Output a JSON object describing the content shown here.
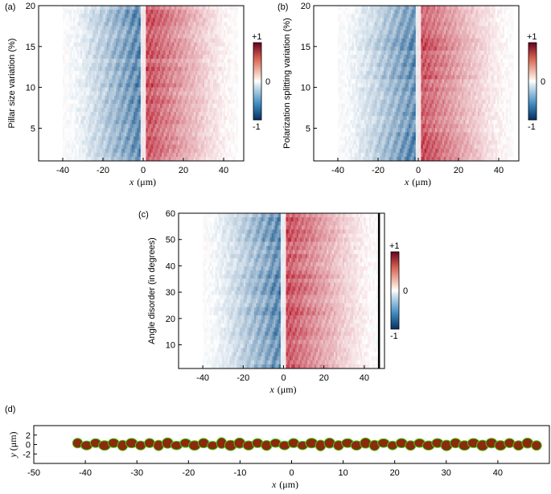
{
  "chart_data": [
    {
      "id": "a",
      "type": "heatmap",
      "panel_label": "(a)",
      "ylabel": "Pillar size variation (%)",
      "xlabel_var": "x",
      "xlabel_unit": "(μm)",
      "xlim": [
        -52,
        50
      ],
      "ylim": [
        1,
        20
      ],
      "xticks": [
        -40,
        -20,
        0,
        20,
        40
      ],
      "yticks": [
        5,
        10,
        15,
        20
      ],
      "colorbar": {
        "max_label": "+1",
        "mid_label": "0",
        "min_label": "-1"
      },
      "data_extent": [
        -40,
        47
      ],
      "colors": {
        "negative": "#0b4f8a",
        "positive": "#b40a1e",
        "zero": "#ffffff"
      }
    },
    {
      "id": "b",
      "type": "heatmap",
      "panel_label": "(b)",
      "ylabel": "Polarization splitting variation (%)",
      "xlabel_var": "x",
      "xlabel_unit": "(μm)",
      "xlim": [
        -52,
        50
      ],
      "ylim": [
        1,
        20
      ],
      "xticks": [
        -40,
        -20,
        0,
        20,
        40
      ],
      "yticks": [
        5,
        10,
        15,
        20
      ],
      "colorbar": {
        "max_label": "+1",
        "mid_label": "0",
        "min_label": "-1"
      },
      "data_extent": [
        -40,
        47
      ],
      "colors": {
        "negative": "#0b4f8a",
        "positive": "#b40a1e",
        "zero": "#ffffff"
      }
    },
    {
      "id": "c",
      "type": "heatmap",
      "panel_label": "(c)",
      "ylabel": "Angle disorder (in degrees)",
      "xlabel_var": "x",
      "xlabel_unit": "(μm)",
      "xlim": [
        -52,
        50
      ],
      "ylim": [
        1,
        60
      ],
      "xticks": [
        -40,
        -20,
        0,
        20,
        40
      ],
      "yticks": [
        10,
        20,
        30,
        40,
        50,
        60
      ],
      "colorbar": {
        "max_label": "+1",
        "mid_label": "0",
        "min_label": "-1"
      },
      "data_extent": [
        -40,
        47
      ],
      "colors": {
        "negative": "#0b4f8a",
        "positive": "#b40a1e",
        "zero": "#ffffff"
      }
    },
    {
      "id": "d",
      "type": "scatter",
      "panel_label": "(d)",
      "ylabel_var": "y",
      "ylabel_unit": "(μm)",
      "xlabel_var": "x",
      "xlabel_unit": "(μm)",
      "xlim": [
        -50,
        50
      ],
      "ylim": [
        -4,
        4
      ],
      "xticks": [
        -50,
        -40,
        -30,
        -20,
        -10,
        0,
        10,
        20,
        30,
        40
      ],
      "yticks": [
        2,
        0,
        -2
      ],
      "pillars": {
        "x_start": -41.5,
        "x_end": 47.5,
        "count": 52
      },
      "colors": {
        "pillar_fill": "#8b2a0c",
        "pillar_outline": "#46c81e"
      }
    }
  ]
}
